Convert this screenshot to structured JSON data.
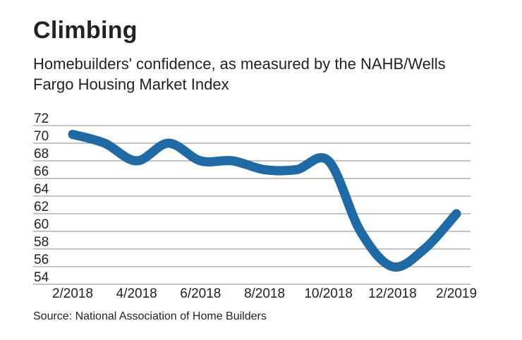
{
  "chart_data": {
    "type": "line",
    "title": "Climbing",
    "subtitle": "Homebuilders' confidence, as measured by the NAHB/Wells Fargo Housing Market Index",
    "source": "Source: National Association of Home Builders",
    "x": [
      "2/2018",
      "3/2018",
      "4/2018",
      "5/2018",
      "6/2018",
      "7/2018",
      "8/2018",
      "9/2018",
      "10/2018",
      "11/2018",
      "12/2018",
      "1/2019",
      "2/2019"
    ],
    "x_tick_labels": [
      "2/2018",
      "4/2018",
      "6/2018",
      "8/2018",
      "10/2018",
      "12/2018",
      "2/2019"
    ],
    "series": [
      {
        "values": [
          71,
          70,
          68,
          70,
          68,
          68,
          67,
          67,
          68,
          60,
          56,
          58,
          62
        ],
        "color": "#1f6aa5"
      }
    ],
    "y_ticks": [
      72,
      70,
      68,
      66,
      64,
      62,
      60,
      58,
      56,
      54
    ],
    "ylim": [
      54,
      72
    ],
    "grid": true,
    "gridline_color": "#8a8a8a"
  }
}
